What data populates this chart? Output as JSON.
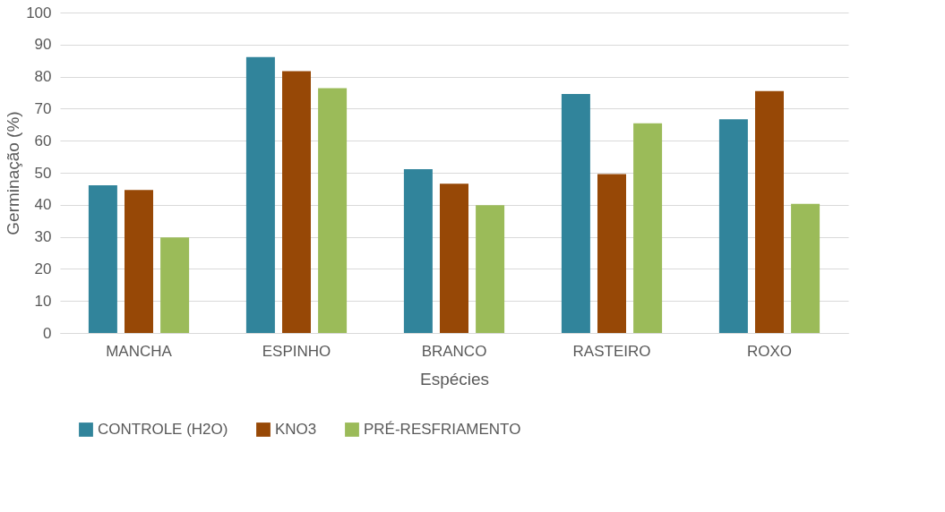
{
  "chart_data": {
    "type": "bar",
    "xlabel": "Espécies",
    "ylabel": "Germinação (%)",
    "categories": [
      "MANCHA",
      "ESPINHO",
      "BRANCO",
      "RASTEIRO",
      "ROXO"
    ],
    "series": [
      {
        "name": "CONTROLE (H2O)",
        "color": "#31849b",
        "values": [
          46.1,
          86.1,
          51.1,
          74.6,
          66.7
        ]
      },
      {
        "name": "KNO3",
        "color": "#974806",
        "values": [
          44.6,
          81.7,
          46.6,
          49.6,
          75.5
        ]
      },
      {
        "name": "PRÉ-RESFRIAMENTO",
        "color": "#9bbb59",
        "values": [
          29.8,
          76.4,
          39.9,
          65.4,
          40.3
        ]
      }
    ],
    "ylim": [
      0,
      100
    ],
    "yticks": [
      0,
      10,
      20,
      30,
      40,
      50,
      60,
      70,
      80,
      90,
      100
    ],
    "grid": "y",
    "legend": "bottom"
  }
}
